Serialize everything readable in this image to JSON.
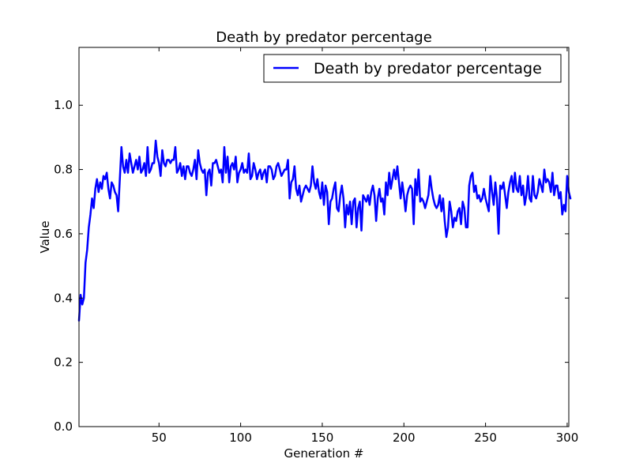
{
  "chart_data": {
    "type": "line",
    "title": "Death by predator percentage",
    "xlabel": "Generation #",
    "ylabel": "Value",
    "xlim": [
      1,
      301
    ],
    "ylim": [
      0,
      1.18
    ],
    "grid": false,
    "legend_position": "top-right",
    "x_ticks": [
      50,
      100,
      150,
      200,
      250,
      300
    ],
    "x_tick_labels": [
      "50",
      "100",
      "150",
      "200",
      "250",
      "300"
    ],
    "y_ticks": [
      0.0,
      0.2,
      0.4,
      0.6,
      0.8,
      1.0
    ],
    "y_tick_labels": [
      "0.0",
      "0.2",
      "0.4",
      "0.6",
      "0.8",
      "1.0"
    ],
    "series": [
      {
        "name": "Death by predator percentage",
        "color": "#0000ff",
        "x_start": 1,
        "x_step": 1,
        "values": [
          0.33,
          0.41,
          0.38,
          0.4,
          0.51,
          0.55,
          0.62,
          0.66,
          0.71,
          0.68,
          0.74,
          0.77,
          0.73,
          0.76,
          0.74,
          0.78,
          0.77,
          0.79,
          0.74,
          0.71,
          0.76,
          0.75,
          0.73,
          0.72,
          0.67,
          0.77,
          0.87,
          0.81,
          0.79,
          0.83,
          0.79,
          0.85,
          0.82,
          0.79,
          0.81,
          0.83,
          0.8,
          0.84,
          0.79,
          0.8,
          0.82,
          0.78,
          0.87,
          0.79,
          0.8,
          0.82,
          0.82,
          0.89,
          0.84,
          0.82,
          0.78,
          0.86,
          0.82,
          0.81,
          0.83,
          0.83,
          0.82,
          0.83,
          0.83,
          0.87,
          0.79,
          0.8,
          0.82,
          0.78,
          0.81,
          0.77,
          0.81,
          0.81,
          0.79,
          0.78,
          0.8,
          0.83,
          0.77,
          0.86,
          0.82,
          0.8,
          0.79,
          0.8,
          0.72,
          0.79,
          0.8,
          0.75,
          0.82,
          0.82,
          0.83,
          0.81,
          0.79,
          0.8,
          0.76,
          0.87,
          0.79,
          0.84,
          0.76,
          0.81,
          0.82,
          0.8,
          0.84,
          0.76,
          0.79,
          0.8,
          0.82,
          0.79,
          0.8,
          0.79,
          0.85,
          0.77,
          0.78,
          0.82,
          0.8,
          0.77,
          0.79,
          0.8,
          0.77,
          0.79,
          0.8,
          0.76,
          0.81,
          0.81,
          0.8,
          0.77,
          0.78,
          0.81,
          0.82,
          0.8,
          0.78,
          0.79,
          0.8,
          0.8,
          0.83,
          0.71,
          0.76,
          0.77,
          0.81,
          0.74,
          0.72,
          0.75,
          0.7,
          0.72,
          0.74,
          0.75,
          0.74,
          0.73,
          0.75,
          0.81,
          0.76,
          0.74,
          0.77,
          0.73,
          0.71,
          0.76,
          0.69,
          0.75,
          0.73,
          0.63,
          0.7,
          0.71,
          0.74,
          0.76,
          0.68,
          0.67,
          0.72,
          0.75,
          0.71,
          0.62,
          0.69,
          0.66,
          0.7,
          0.63,
          0.7,
          0.71,
          0.62,
          0.68,
          0.7,
          0.61,
          0.72,
          0.71,
          0.7,
          0.72,
          0.69,
          0.73,
          0.75,
          0.72,
          0.64,
          0.71,
          0.74,
          0.7,
          0.71,
          0.66,
          0.76,
          0.72,
          0.79,
          0.74,
          0.77,
          0.8,
          0.77,
          0.81,
          0.76,
          0.71,
          0.76,
          0.72,
          0.67,
          0.72,
          0.74,
          0.75,
          0.74,
          0.63,
          0.77,
          0.72,
          0.8,
          0.7,
          0.71,
          0.7,
          0.68,
          0.7,
          0.72,
          0.78,
          0.74,
          0.71,
          0.69,
          0.68,
          0.69,
          0.72,
          0.67,
          0.71,
          0.64,
          0.59,
          0.62,
          0.7,
          0.67,
          0.62,
          0.65,
          0.64,
          0.67,
          0.68,
          0.63,
          0.7,
          0.68,
          0.62,
          0.62,
          0.75,
          0.78,
          0.79,
          0.73,
          0.75,
          0.71,
          0.72,
          0.7,
          0.71,
          0.74,
          0.71,
          0.69,
          0.67,
          0.78,
          0.73,
          0.69,
          0.76,
          0.71,
          0.6,
          0.75,
          0.74,
          0.76,
          0.72,
          0.68,
          0.73,
          0.76,
          0.78,
          0.73,
          0.79,
          0.74,
          0.73,
          0.78,
          0.72,
          0.75,
          0.69,
          0.72,
          0.78,
          0.71,
          0.7,
          0.78,
          0.72,
          0.71,
          0.73,
          0.77,
          0.75,
          0.73,
          0.8,
          0.76,
          0.77,
          0.76,
          0.73,
          0.79,
          0.72,
          0.75,
          0.75,
          0.71,
          0.73,
          0.66,
          0.69,
          0.67,
          0.78,
          0.73,
          0.71
        ]
      }
    ]
  }
}
